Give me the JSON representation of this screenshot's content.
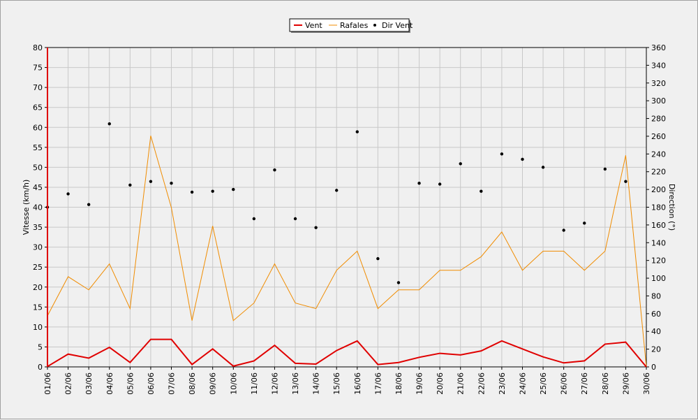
{
  "chart_data": {
    "type": "line",
    "ylabel_left": "Vitesse (km/h)",
    "ylabel_right": "Direction (°)",
    "ylim_left": [
      0,
      80
    ],
    "ylim_right": [
      0,
      360
    ],
    "yticks_left": [
      0,
      5,
      10,
      15,
      20,
      25,
      30,
      35,
      40,
      45,
      50,
      55,
      60,
      65,
      70,
      75,
      80
    ],
    "yticks_right": [
      0,
      20,
      40,
      60,
      80,
      100,
      120,
      140,
      160,
      180,
      200,
      220,
      240,
      260,
      280,
      300,
      320,
      340,
      360
    ],
    "grid": true,
    "legend_position": "top-center",
    "categories": [
      "01/06",
      "02/06",
      "03/06",
      "04/06",
      "05/06",
      "06/06",
      "07/06",
      "08/06",
      "09/06",
      "10/06",
      "11/06",
      "12/06",
      "13/06",
      "14/06",
      "15/06",
      "16/06",
      "17/06",
      "18/06",
      "19/06",
      "20/06",
      "21/06",
      "22/06",
      "23/06",
      "24/06",
      "25/06",
      "26/06",
      "27/06",
      "28/06",
      "29/06",
      "30/06"
    ],
    "series": [
      {
        "name": "Vent",
        "axis": "left",
        "color": "#e00000",
        "values": [
          0.1,
          3.2,
          2.2,
          4.9,
          1.1,
          6.9,
          6.9,
          0.6,
          4.5,
          0.2,
          1.5,
          5.4,
          0.9,
          0.7,
          4.1,
          6.5,
          0.6,
          1.1,
          2.4,
          3.4,
          3.0,
          4.0,
          6.5,
          4.5,
          2.5,
          1.0,
          1.5,
          5.7,
          6.2,
          0.0
        ]
      },
      {
        "name": "Rafales",
        "axis": "left",
        "color": "#f08c00",
        "values": [
          12.8,
          22.6,
          19.3,
          25.8,
          14.6,
          57.9,
          39.9,
          11.6,
          35.3,
          11.6,
          16.0,
          25.8,
          16.0,
          14.6,
          24.2,
          29.0,
          14.6,
          19.3,
          19.3,
          24.2,
          24.2,
          27.6,
          33.8,
          24.2,
          29.0,
          29.0,
          24.2,
          29.0,
          53.0,
          0.0
        ]
      },
      {
        "name": "Dir Vent",
        "axis": "right",
        "color": "#000000",
        "values": [
          180,
          195,
          183,
          274,
          205,
          209,
          207,
          197,
          198,
          200,
          167,
          222,
          167,
          157,
          199,
          265,
          122,
          95,
          207,
          206,
          229,
          198,
          240,
          234,
          225,
          154,
          162,
          223,
          209,
          null
        ]
      }
    ]
  }
}
